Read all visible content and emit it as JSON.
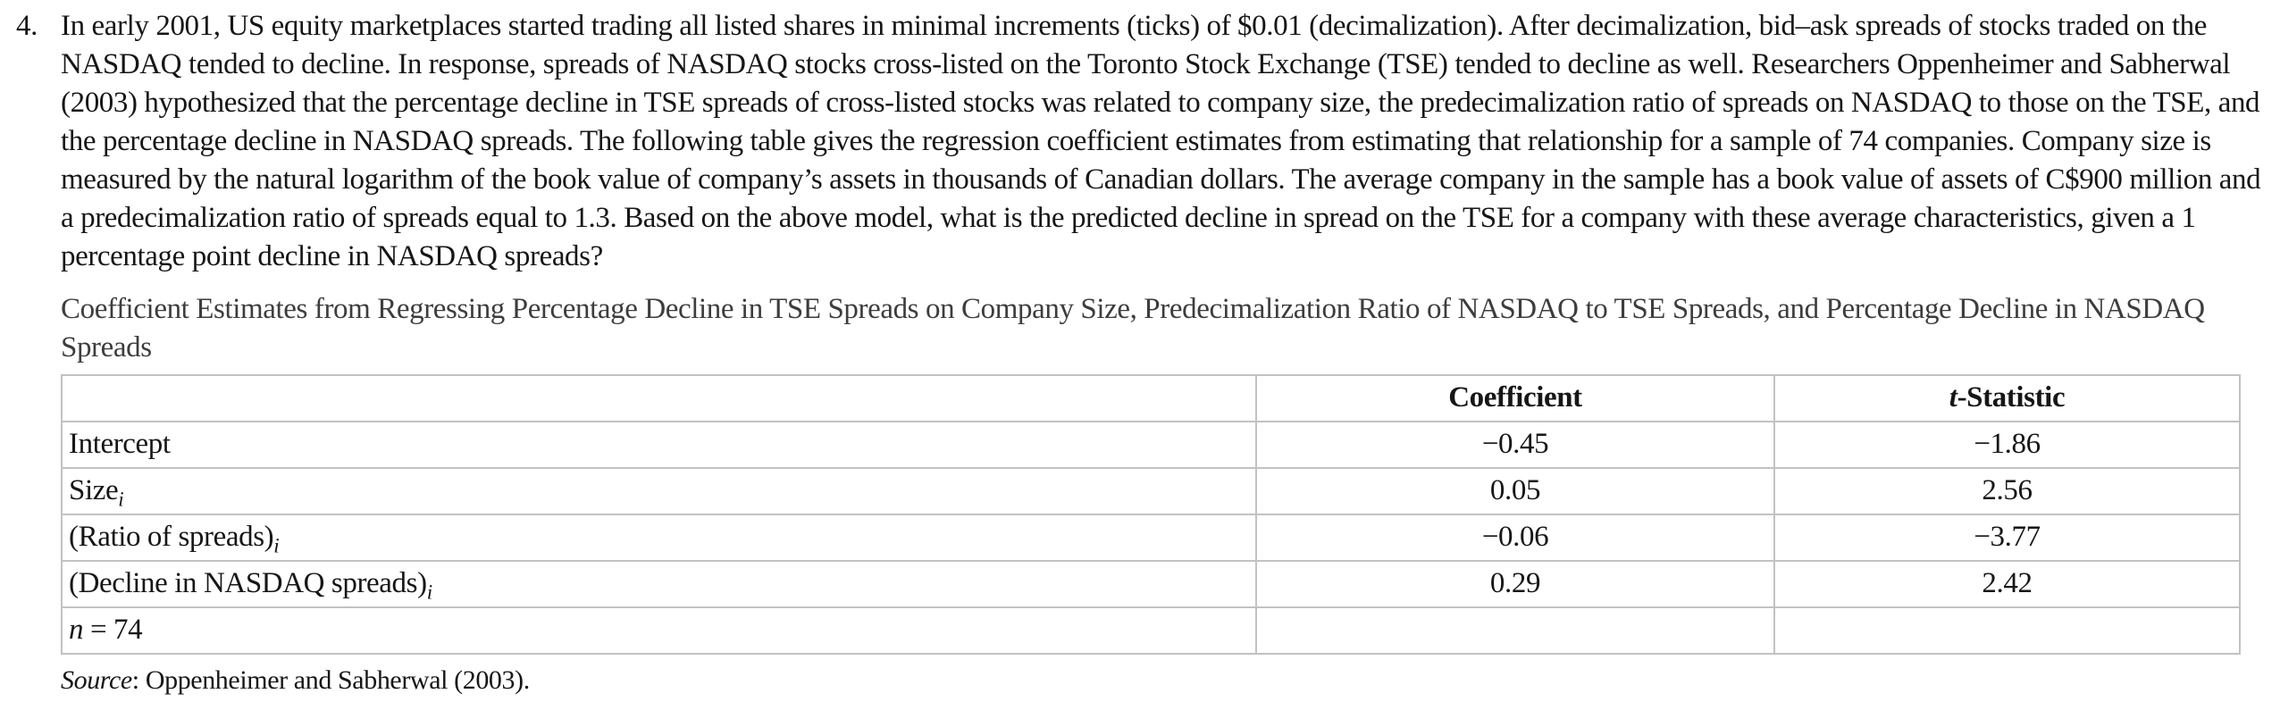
{
  "colors": {
    "background": "#ffffff",
    "text": "#161616",
    "caption_text": "#3d3d3d",
    "table_border": "#c2c2c2"
  },
  "question": {
    "number": "4.",
    "text": "In early 2001, US equity marketplaces started trading all listed shares in minimal increments (ticks) of $0.01 (decimalization). After decimalization, bid–ask spreads of stocks traded on the NASDAQ tended to decline. In response, spreads of NASDAQ stocks cross-listed on the Toronto Stock Exchange (TSE) tended to decline as well. Researchers Oppenheimer and Sabherwal (2003) hypothesized that the percentage decline in TSE spreads of cross-listed stocks was related to company size, the predecimalization ratio of spreads on NASDAQ to those on the TSE, and the percentage decline in NASDAQ spreads. The following table gives the regression coefficient estimates from estimating that relationship for a sample of 74 companies. Company size is measured by the natural logarithm of the book value of company’s assets in thousands of Canadian dollars. The average company in the sample has a book value of assets of C$900 million and a predecimalization ratio of spreads equal to 1.3. Based on the above model, what is the predicted decline in spread on the TSE for a company with these average characteristics, given a 1 percentage point decline in NASDAQ spreads?"
  },
  "table": {
    "caption": "Coefficient Estimates from Regressing Percentage Decline in TSE Spreads on Company Size, Predecimalization Ratio of NASDAQ to TSE Spreads, and Percentage Decline in NASDAQ Spreads",
    "headers": {
      "empty": "",
      "coefficient": "Coefficient",
      "t_statistic_italic_prefix": "t",
      "t_statistic_rest": "-Statistic"
    },
    "rows": [
      {
        "label": "Intercept",
        "sub": "",
        "coefficient": "−0.45",
        "t_statistic": "−1.86"
      },
      {
        "label": "Size",
        "sub": "i",
        "coefficient": "0.05",
        "t_statistic": "2.56"
      },
      {
        "label": "(Ratio of spreads)",
        "sub": "i",
        "coefficient": "−0.06",
        "t_statistic": "−3.77"
      },
      {
        "label": "(Decline in NASDAQ spreads)",
        "sub": "i",
        "coefficient": "0.29",
        "t_statistic": "2.42"
      }
    ],
    "footer": {
      "italic_n": "n",
      "rest": " = 74"
    }
  },
  "source": {
    "italic_label": "Source",
    "rest": ": Oppenheimer and Sabherwal (2003)."
  }
}
